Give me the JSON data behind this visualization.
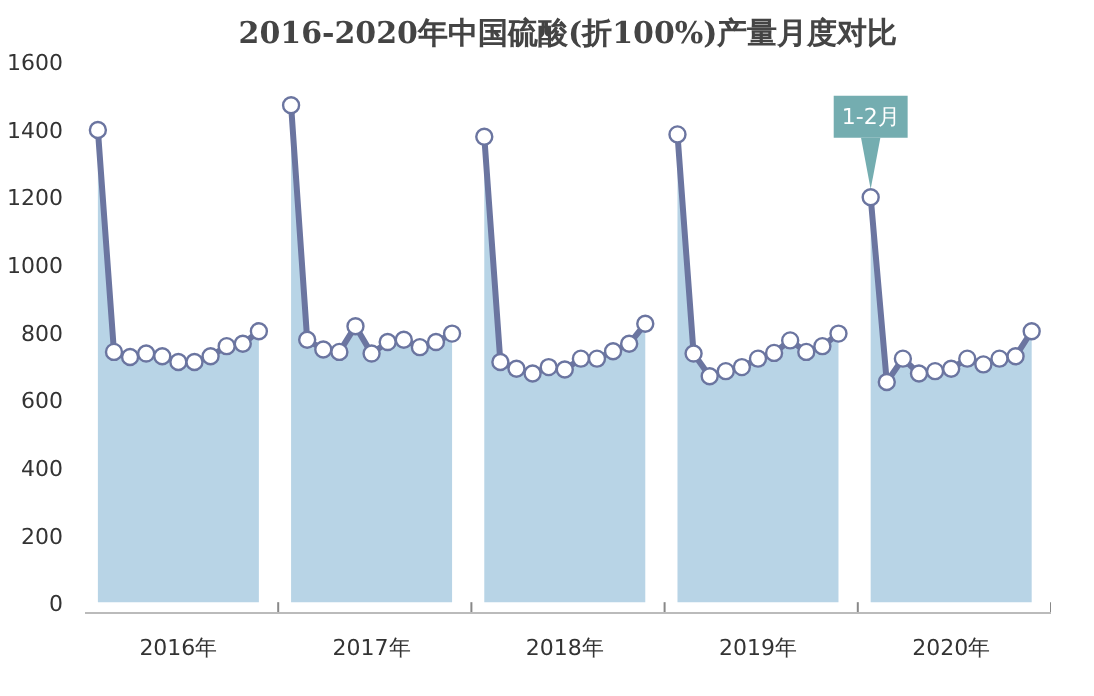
{
  "chart_data": {
    "type": "area",
    "title": "2016-2020年中国硫酸(折100%)产量月度对比",
    "categories": [
      null,
      null,
      null,
      null,
      null,
      "2016年",
      null,
      null,
      null,
      null,
      null,
      null,
      null,
      null,
      null,
      null,
      null,
      "2017年",
      null,
      null,
      null,
      null,
      null,
      null,
      null,
      null,
      null,
      null,
      null,
      "2018年",
      null,
      null,
      null,
      null,
      null,
      null,
      null,
      null,
      null,
      null,
      null,
      "2019年",
      null,
      null,
      null,
      null,
      null,
      null,
      null,
      null,
      null,
      null,
      null,
      "2020年",
      null,
      null,
      null,
      null,
      null,
      null
    ],
    "series": [
      {
        "color": "#b8d4e6",
        "values": [
          1396,
          740,
          725,
          735,
          727,
          710,
          710,
          727,
          757,
          764,
          801,
          null,
          1469,
          776,
          747,
          740,
          816,
          735,
          769,
          776,
          754,
          769,
          794,
          null,
          1376,
          710,
          690,
          676,
          695,
          688,
          720,
          720,
          742,
          764,
          823,
          null,
          1383,
          735,
          668,
          683,
          695,
          720,
          737,
          774,
          740,
          757,
          794,
          null,
          1197,
          651,
          720,
          676,
          683,
          690,
          720,
          703,
          720,
          727,
          801,
          null
        ]
      }
    ],
    "ylim": [
      0,
      1600
    ],
    "yticks": [
      0,
      200,
      400,
      600,
      800,
      1000,
      1200,
      1400,
      1600
    ],
    "marker": "circle",
    "grid": false,
    "annotations": [
      {
        "text": "1-2月",
        "y": 1197
      }
    ]
  }
}
